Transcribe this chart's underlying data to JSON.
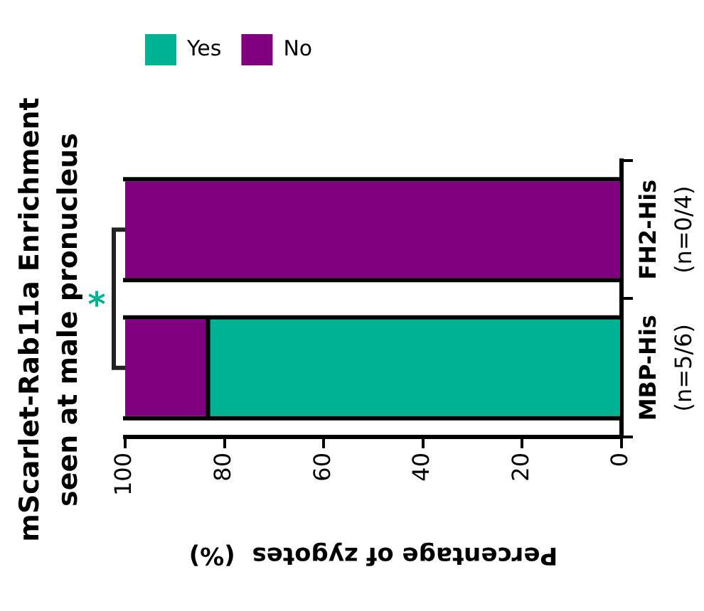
{
  "chart_data": {
    "type": "bar",
    "stacked": true,
    "orientation": "horizontal",
    "title": "mScarlet-Rab11a Enrichment\nseen at male pronucleus",
    "xlabel": "Percentage of zygotes  (%)",
    "categories": [
      "FH2-His\n(n=0/4)",
      "MBP-His\n(n=5/6)"
    ],
    "series": [
      {
        "name": "Yes",
        "color": "#00b294",
        "values": [
          0,
          83.3
        ]
      },
      {
        "name": "No",
        "color": "#800080",
        "values": [
          100,
          16.7
        ]
      }
    ],
    "xlim": [
      100,
      0
    ],
    "xticks": [
      100,
      80,
      60,
      40,
      20,
      0
    ],
    "grid": false,
    "legend": "top left",
    "annotations": [
      "*"
    ]
  }
}
